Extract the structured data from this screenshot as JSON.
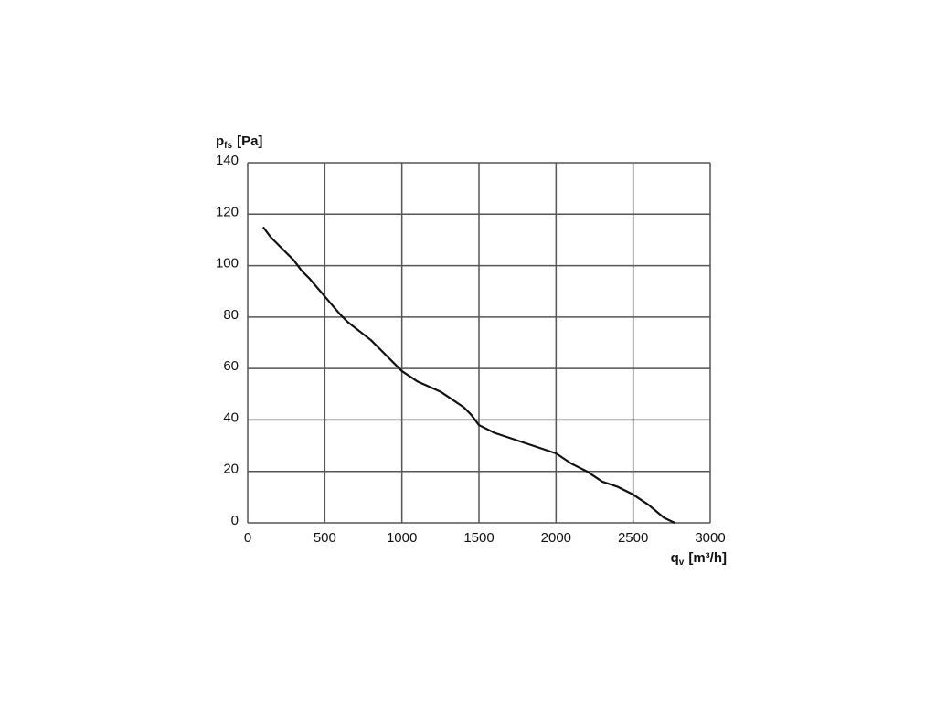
{
  "chart_data": {
    "type": "line",
    "y_label": {
      "symbol": "p",
      "subscript": "fs",
      "unit": "[Pa]"
    },
    "x_label": {
      "symbol": "q",
      "subscript": "v",
      "unit": "[m³/h]"
    },
    "x": [
      100,
      150,
      250,
      300,
      350,
      400,
      500,
      600,
      650,
      800,
      1000,
      1100,
      1250,
      1300,
      1400,
      1450,
      1500,
      1600,
      1800,
      1900,
      2000,
      2100,
      2200,
      2300,
      2400,
      2500,
      2600,
      2700,
      2770
    ],
    "series": [
      {
        "color": "#111111",
        "values": [
          115,
          111,
          105,
          102,
          98,
          95,
          88,
          81,
          78,
          71,
          59,
          55,
          51,
          49,
          45,
          42,
          38,
          35,
          31,
          29,
          27,
          23,
          20,
          16,
          14,
          11,
          7,
          2,
          0
        ]
      }
    ],
    "xlim": [
      0,
      3000
    ],
    "ylim": [
      0,
      140
    ],
    "xticks": [
      0,
      500,
      1000,
      1500,
      2000,
      2500,
      3000
    ],
    "yticks": [
      0,
      20,
      40,
      60,
      80,
      100,
      120,
      140
    ],
    "grid": true
  }
}
